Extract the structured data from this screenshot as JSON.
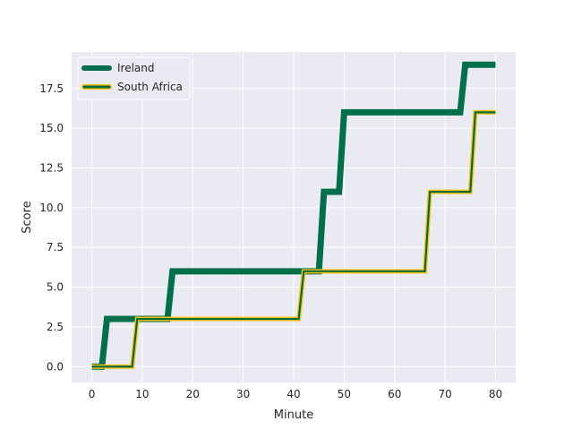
{
  "chart_data": {
    "type": "line",
    "xlabel": "Minute",
    "ylabel": "Score",
    "xlim": [
      -4,
      84
    ],
    "ylim": [
      -1,
      19.8
    ],
    "xticks": [
      0,
      10,
      20,
      30,
      40,
      50,
      60,
      70,
      80
    ],
    "yticks": [
      0.0,
      2.5,
      5.0,
      7.5,
      10.0,
      12.5,
      15.0,
      17.5
    ],
    "ytick_labels": [
      "0.0",
      "2.5",
      "5.0",
      "7.5",
      "10.0",
      "12.5",
      "15.0",
      "17.5"
    ],
    "grid": true,
    "legend_position": "top-left",
    "series": [
      {
        "name": "Ireland",
        "color": "#00704a",
        "edge_color": "#00704a",
        "points": [
          [
            0,
            0
          ],
          [
            2,
            0
          ],
          [
            3,
            3
          ],
          [
            15,
            3
          ],
          [
            16,
            6
          ],
          [
            45,
            6
          ],
          [
            46,
            11
          ],
          [
            49,
            11
          ],
          [
            50,
            16
          ],
          [
            73,
            16
          ],
          [
            74,
            19
          ],
          [
            80,
            19
          ]
        ]
      },
      {
        "name": "South Africa",
        "color": "#006b3c",
        "edge_color": "#ffc20e",
        "points": [
          [
            0,
            0
          ],
          [
            8,
            0
          ],
          [
            9,
            3
          ],
          [
            41,
            3
          ],
          [
            42,
            6
          ],
          [
            66,
            6
          ],
          [
            67,
            11
          ],
          [
            75,
            11
          ],
          [
            76,
            16
          ],
          [
            80,
            16
          ]
        ]
      }
    ]
  },
  "legend": {
    "ireland": "Ireland",
    "south_africa": "South Africa"
  }
}
